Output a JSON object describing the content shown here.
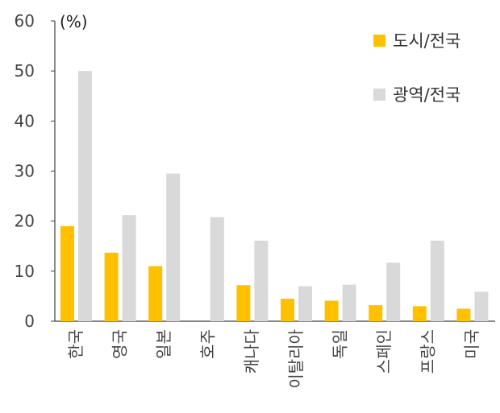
{
  "chart_data": {
    "type": "bar",
    "unit_label": "(%)",
    "categories": [
      "한국",
      "영국",
      "일본",
      "호주",
      "캐나다",
      "이탈리아",
      "독일",
      "스페인",
      "프랑스",
      "미국"
    ],
    "series": [
      {
        "name": "도시/전국",
        "color": "#FFC000",
        "values": [
          19.0,
          13.7,
          11.0,
          null,
          7.2,
          4.5,
          4.1,
          3.2,
          3.0,
          2.5
        ]
      },
      {
        "name": "광역/전국",
        "color": "#D9D9D9",
        "values": [
          50.0,
          21.2,
          29.5,
          20.8,
          16.1,
          7.0,
          7.3,
          11.7,
          16.1,
          5.9
        ]
      }
    ],
    "yticks": [
      0,
      10,
      20,
      30,
      40,
      50,
      60
    ],
    "ylim": [
      0,
      60
    ],
    "legend_position": "top-right",
    "grid": false
  }
}
